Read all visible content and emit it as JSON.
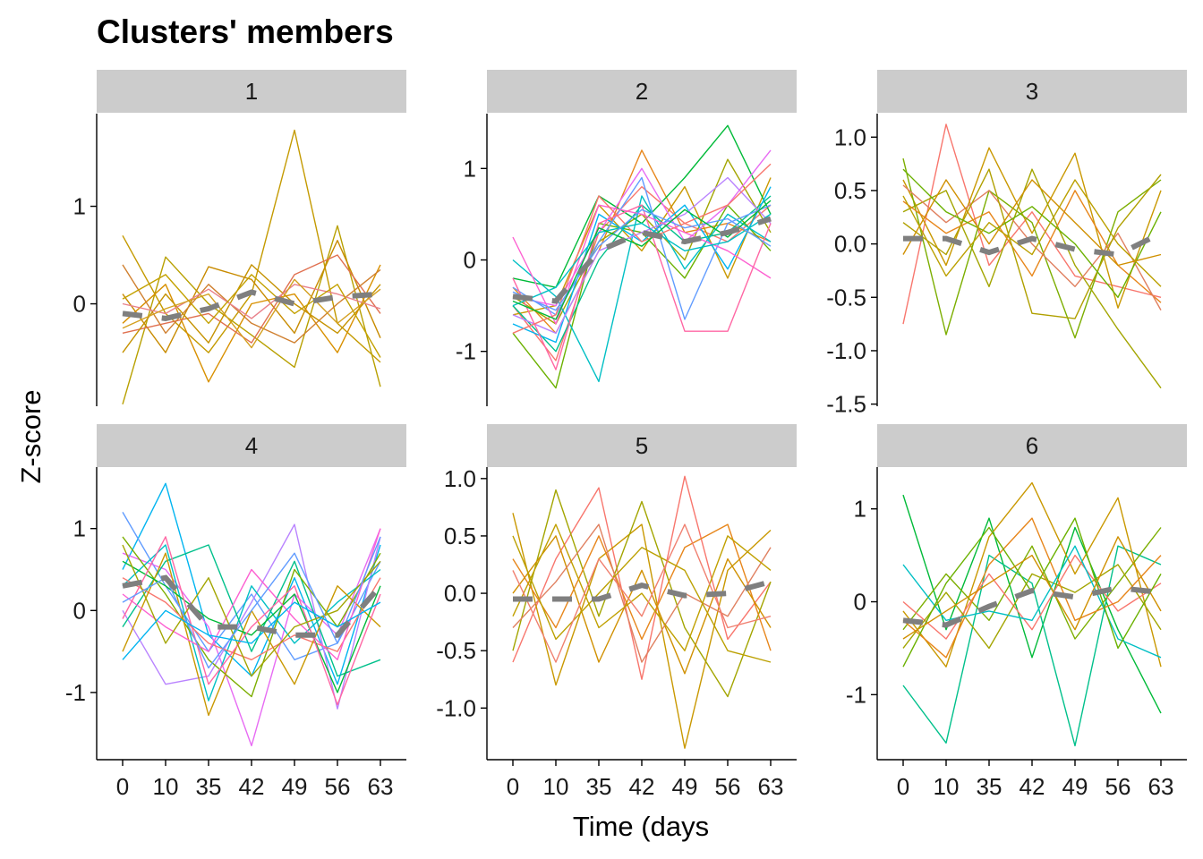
{
  "chart_data": {
    "type": "line",
    "title": "Clusters' members",
    "xlabel": "Time (days",
    "ylabel": "Z-score",
    "x": [
      "0",
      "10",
      "35",
      "42",
      "49",
      "56",
      "63"
    ],
    "strip_color": "#cccccc",
    "center_color": "#7f7f7f",
    "panels": [
      {
        "label": "1",
        "ylim": [
          -1.05,
          1.95
        ],
        "yticks": [
          0,
          1
        ],
        "ytick_labels": [
          "0",
          "1"
        ],
        "show_x_ticks": false,
        "center": [
          -0.1,
          -0.15,
          -0.05,
          0.12,
          0.0,
          0.07,
          0.1
        ],
        "series": [
          {
            "color": "#c49a00",
            "values": [
              0.7,
              -0.1,
              -0.5,
              0.1,
              1.78,
              -0.2,
              -0.6
            ]
          },
          {
            "color": "#b8a000",
            "values": [
              -1.03,
              0.48,
              0.0,
              -0.32,
              -0.65,
              0.8,
              -0.85
            ]
          },
          {
            "color": "#c88b00",
            "values": [
              0.1,
              -0.5,
              0.38,
              0.25,
              -0.3,
              0.65,
              -0.35
            ]
          },
          {
            "color": "#d89000",
            "values": [
              -0.2,
              0.2,
              -0.8,
              0.0,
              0.1,
              -0.5,
              0.4
            ]
          },
          {
            "color": "#e07050",
            "values": [
              -0.3,
              -0.2,
              -0.1,
              -0.4,
              0.3,
              0.5,
              -0.1
            ]
          },
          {
            "color": "#d08030",
            "values": [
              0.4,
              -0.3,
              0.2,
              -0.2,
              -0.4,
              0.0,
              0.35
            ]
          },
          {
            "color": "#c59200",
            "values": [
              -0.5,
              0.1,
              -0.4,
              0.4,
              0.0,
              -0.3,
              0.2
            ]
          },
          {
            "color": "#e8808a",
            "values": [
              0.0,
              -0.1,
              0.15,
              -0.15,
              0.2,
              0.1,
              -0.05
            ]
          },
          {
            "color": "#c3a100",
            "values": [
              0.05,
              0.3,
              -0.2,
              0.3,
              -0.1,
              0.2,
              -0.55
            ]
          },
          {
            "color": "#d4a020",
            "values": [
              -0.25,
              -0.05,
              0.1,
              -0.45,
              0.25,
              -0.2,
              0.15
            ]
          }
        ]
      },
      {
        "label": "2",
        "ylim": [
          -1.6,
          1.6
        ],
        "yticks": [
          -1,
          0,
          1
        ],
        "ytick_labels": [
          "-1",
          "0",
          "1"
        ],
        "show_x_ticks": false,
        "center": [
          -0.4,
          -0.45,
          0.1,
          0.3,
          0.2,
          0.3,
          0.45
        ],
        "series": [
          {
            "color": "#f8766d",
            "values": [
              -0.5,
              -1.1,
              0.3,
              0.8,
              0.4,
              0.2,
              0.6
            ]
          },
          {
            "color": "#e7861b",
            "values": [
              -0.3,
              -0.8,
              0.1,
              1.2,
              0.3,
              0.4,
              0.2
            ]
          },
          {
            "color": "#c99800",
            "values": [
              -0.6,
              -0.5,
              0.6,
              0.1,
              0.8,
              -0.2,
              0.9
            ]
          },
          {
            "color": "#a3a500",
            "values": [
              -0.4,
              -0.7,
              0.2,
              0.5,
              0.0,
              1.1,
              0.3
            ]
          },
          {
            "color": "#6bb100",
            "values": [
              -0.8,
              -1.4,
              0.4,
              0.3,
              -0.2,
              0.6,
              0.1
            ]
          },
          {
            "color": "#00ba38",
            "values": [
              -0.2,
              -0.3,
              0.7,
              0.4,
              0.9,
              1.47,
              0.5
            ]
          },
          {
            "color": "#00c08b",
            "values": [
              -0.5,
              -1.0,
              0.0,
              0.6,
              0.2,
              0.3,
              0.7
            ]
          },
          {
            "color": "#00bfc4",
            "values": [
              0.0,
              -0.4,
              -1.33,
              0.7,
              -0.1,
              0.5,
              0.2
            ]
          },
          {
            "color": "#00b4f0",
            "values": [
              -0.7,
              -0.9,
              0.5,
              0.2,
              0.6,
              -0.1,
              0.8
            ]
          },
          {
            "color": "#619cff",
            "values": [
              -0.3,
              -0.6,
              0.2,
              0.9,
              -0.65,
              0.4,
              0.6
            ]
          },
          {
            "color": "#b983ff",
            "values": [
              -0.6,
              -0.8,
              0.1,
              0.3,
              0.5,
              0.9,
              0.4
            ]
          },
          {
            "color": "#e76bf3",
            "values": [
              -0.4,
              -0.5,
              0.3,
              1.0,
              0.2,
              0.6,
              1.2
            ]
          },
          {
            "color": "#fd61d1",
            "values": [
              0.25,
              -0.7,
              0.6,
              0.5,
              0.3,
              0.1,
              -0.2
            ]
          },
          {
            "color": "#ff67a4",
            "values": [
              -0.2,
              -1.2,
              0.4,
              0.6,
              -0.78,
              -0.78,
              0.4
            ]
          },
          {
            "color": "#f8766d",
            "values": [
              -0.8,
              -0.6,
              0.7,
              0.2,
              0.4,
              0.6,
              1.05
            ]
          },
          {
            "color": "#00bfc4",
            "values": [
              -0.5,
              -0.3,
              0.3,
              0.4,
              0.1,
              0.2,
              0.5
            ]
          },
          {
            "color": "#619cff",
            "values": [
              -0.35,
              -0.55,
              0.15,
              0.55,
              0.35,
              0.45,
              0.15
            ]
          },
          {
            "color": "#00ba38",
            "values": [
              -0.45,
              -0.65,
              0.35,
              0.15,
              0.55,
              0.25,
              0.65
            ]
          }
        ]
      },
      {
        "label": "3",
        "ylim": [
          -1.52,
          1.22
        ],
        "yticks": [
          -1.5,
          -1.0,
          -0.5,
          0.0,
          0.5,
          1.0
        ],
        "ytick_labels": [
          "-1.5",
          "-1.0",
          "-0.5",
          "0.0",
          "0.5",
          "1.0"
        ],
        "show_x_ticks": false,
        "center": [
          0.05,
          0.05,
          -0.08,
          0.05,
          -0.05,
          -0.1,
          0.1
        ],
        "series": [
          {
            "color": "#f8766d",
            "values": [
              -0.75,
              1.12,
              -0.2,
              0.3,
              -0.3,
              -0.4,
              -0.5
            ]
          },
          {
            "color": "#c99800",
            "values": [
              0.6,
              -0.2,
              0.9,
              0.1,
              0.85,
              -0.6,
              0.5
            ]
          },
          {
            "color": "#7cae00",
            "values": [
              0.8,
              -0.85,
              0.5,
              0.2,
              -0.88,
              0.3,
              0.6
            ]
          },
          {
            "color": "#a3a500",
            "values": [
              0.3,
              0.5,
              -0.4,
              0.7,
              -0.2,
              -0.8,
              -1.35
            ]
          },
          {
            "color": "#e7861b",
            "values": [
              0.4,
              0.1,
              0.3,
              -0.3,
              0.5,
              -0.2,
              -0.55
            ]
          },
          {
            "color": "#e08060",
            "values": [
              0.55,
              0.2,
              0.5,
              0.0,
              -0.4,
              0.1,
              -0.62
            ]
          },
          {
            "color": "#b0a000",
            "values": [
              0.2,
              -0.1,
              0.7,
              -0.65,
              -0.7,
              0.15,
              0.65
            ]
          },
          {
            "color": "#6bb100",
            "values": [
              0.7,
              0.3,
              0.1,
              0.35,
              0.0,
              -0.5,
              0.3
            ]
          },
          {
            "color": "#d09000",
            "values": [
              -0.1,
              0.6,
              0.0,
              0.6,
              0.2,
              -0.2,
              -0.1
            ]
          },
          {
            "color": "#bba000",
            "values": [
              0.45,
              -0.3,
              0.2,
              -0.1,
              0.6,
              0.0,
              -0.4
            ]
          }
        ]
      },
      {
        "label": "4",
        "ylim": [
          -1.82,
          1.75
        ],
        "yticks": [
          -1,
          0,
          1
        ],
        "ytick_labels": [
          "-1",
          "0",
          "1"
        ],
        "show_x_ticks": true,
        "center": [
          0.3,
          0.4,
          -0.2,
          -0.2,
          -0.3,
          -0.3,
          0.3
        ],
        "series": [
          {
            "color": "#00b4f0",
            "values": [
              0.5,
              1.55,
              -0.3,
              -0.8,
              0.4,
              -0.9,
              0.8
            ]
          },
          {
            "color": "#619cff",
            "values": [
              1.2,
              0.3,
              -0.5,
              0.2,
              -0.6,
              -0.4,
              0.6
            ]
          },
          {
            "color": "#e76bf3",
            "values": [
              0.7,
              0.5,
              -0.2,
              -1.65,
              0.2,
              -0.3,
              1.0
            ]
          },
          {
            "color": "#b983ff",
            "values": [
              0.0,
              -0.9,
              -0.8,
              0.1,
              1.05,
              -1.2,
              0.9
            ]
          },
          {
            "color": "#00bfc4",
            "values": [
              0.3,
              0.8,
              -1.1,
              0.3,
              -0.4,
              0.1,
              0.5
            ]
          },
          {
            "color": "#00c08b",
            "values": [
              -0.2,
              0.6,
              0.8,
              -0.5,
              0.6,
              -0.8,
              -0.6
            ]
          },
          {
            "color": "#7cae00",
            "values": [
              0.9,
              0.2,
              -0.6,
              -1.05,
              0.5,
              -0.2,
              0.7
            ]
          },
          {
            "color": "#f8766d",
            "values": [
              0.4,
              0.1,
              -0.4,
              -0.6,
              -0.3,
              -0.5,
              0.4
            ]
          },
          {
            "color": "#c99800",
            "values": [
              -0.5,
              0.7,
              -1.28,
              0.0,
              -0.9,
              0.3,
              -0.2
            ]
          },
          {
            "color": "#00ba38",
            "values": [
              0.6,
              0.3,
              -0.1,
              -0.3,
              0.2,
              -1.0,
              0.3
            ]
          },
          {
            "color": "#fd61d1",
            "values": [
              0.2,
              -0.2,
              -0.5,
              0.5,
              -0.1,
              -0.6,
              1.0
            ]
          },
          {
            "color": "#ff67a4",
            "values": [
              -0.1,
              0.9,
              -0.9,
              -0.2,
              0.3,
              -1.15,
              0.2
            ]
          },
          {
            "color": "#a3a500",
            "values": [
              0.8,
              -0.4,
              0.4,
              -0.8,
              -0.2,
              0.0,
              0.6
            ]
          },
          {
            "color": "#619cff",
            "values": [
              0.1,
              0.4,
              -0.7,
              0.0,
              0.7,
              -0.4,
              0.9
            ]
          },
          {
            "color": "#00b4f0",
            "values": [
              -0.6,
              0.0,
              -0.3,
              -0.4,
              0.1,
              -0.2,
              0.1
            ]
          }
        ]
      },
      {
        "label": "5",
        "ylim": [
          -1.45,
          1.1
        ],
        "yticks": [
          -1.0,
          -0.5,
          0.0,
          0.5,
          1.0
        ],
        "ytick_labels": [
          "-1.0",
          "-0.5",
          "0.0",
          "0.5",
          "1.0"
        ],
        "show_x_ticks": true,
        "center": [
          -0.05,
          -0.05,
          -0.05,
          0.07,
          -0.02,
          0.0,
          0.1
        ],
        "series": [
          {
            "color": "#f8766d",
            "values": [
              -0.6,
              0.3,
              0.92,
              -0.75,
              1.02,
              -0.4,
              0.1
            ]
          },
          {
            "color": "#c99800",
            "values": [
              0.7,
              -0.8,
              0.3,
              0.6,
              -1.35,
              0.2,
              0.55
            ]
          },
          {
            "color": "#a3a500",
            "values": [
              -0.5,
              0.9,
              -0.2,
              0.8,
              -0.3,
              -0.9,
              0.1
            ]
          },
          {
            "color": "#e7861b",
            "values": [
              0.3,
              -0.3,
              0.5,
              -0.4,
              0.4,
              0.6,
              -0.5
            ]
          },
          {
            "color": "#d09000",
            "values": [
              0.0,
              0.5,
              -0.6,
              0.2,
              -0.7,
              0.3,
              -0.3
            ]
          },
          {
            "color": "#e08060",
            "values": [
              -0.3,
              0.1,
              0.6,
              -0.6,
              0.0,
              -0.2,
              0.4
            ]
          },
          {
            "color": "#bba000",
            "values": [
              0.5,
              -0.4,
              0.0,
              0.4,
              0.2,
              -0.5,
              -0.6
            ]
          },
          {
            "color": "#c0a000",
            "values": [
              -0.2,
              0.6,
              -0.3,
              0.0,
              -0.5,
              0.5,
              0.2
            ]
          },
          {
            "color": "#f08070",
            "values": [
              0.2,
              -0.6,
              0.3,
              -0.2,
              0.6,
              -0.3,
              -0.2
            ]
          }
        ]
      },
      {
        "label": "6",
        "ylim": [
          -1.7,
          1.45
        ],
        "yticks": [
          -1,
          0,
          1
        ],
        "ytick_labels": [
          "-1",
          "0",
          "1"
        ],
        "show_x_ticks": true,
        "center": [
          -0.2,
          -0.25,
          -0.05,
          0.12,
          0.05,
          0.15,
          0.1
        ],
        "series": [
          {
            "color": "#00ba38",
            "values": [
              1.15,
              -0.3,
              0.9,
              -0.6,
              0.8,
              -0.3,
              -1.2
            ]
          },
          {
            "color": "#00c08b",
            "values": [
              -0.9,
              -1.52,
              0.5,
              0.2,
              -1.55,
              0.6,
              0.4
            ]
          },
          {
            "color": "#c99800",
            "values": [
              -0.1,
              -0.7,
              0.7,
              1.28,
              0.3,
              1.12,
              -0.7
            ]
          },
          {
            "color": "#7cae00",
            "values": [
              -0.3,
              0.3,
              -0.2,
              0.6,
              -0.4,
              0.2,
              0.8
            ]
          },
          {
            "color": "#f8766d",
            "values": [
              0.0,
              -0.4,
              0.3,
              -0.3,
              0.5,
              -0.1,
              0.2
            ]
          },
          {
            "color": "#a3a500",
            "values": [
              -0.5,
              0.1,
              -0.5,
              0.3,
              0.1,
              0.4,
              -0.3
            ]
          },
          {
            "color": "#e7861b",
            "values": [
              -0.2,
              -0.6,
              0.4,
              0.9,
              -0.2,
              0.0,
              0.5
            ]
          },
          {
            "color": "#00bfc4",
            "values": [
              0.4,
              -0.2,
              -0.1,
              -0.2,
              0.6,
              -0.4,
              -0.6
            ]
          },
          {
            "color": "#6bb100",
            "values": [
              -0.7,
              0.2,
              0.8,
              0.1,
              0.9,
              -0.5,
              0.3
            ]
          },
          {
            "color": "#d09000",
            "values": [
              -0.4,
              -0.1,
              0.2,
              0.5,
              -0.3,
              0.7,
              -0.1
            ]
          }
        ]
      }
    ]
  }
}
